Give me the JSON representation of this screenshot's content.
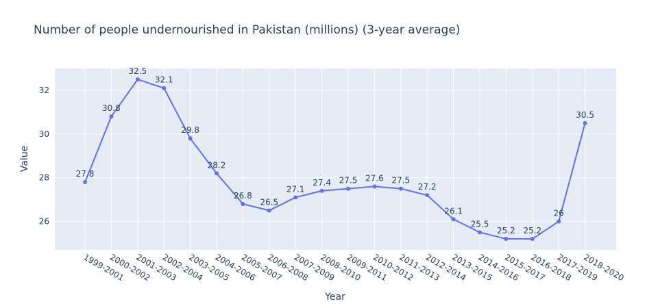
{
  "chart_data": {
    "type": "line",
    "title": "Number of people undernourished in Pakistan (millions) (3-year average)",
    "xlabel": "Year",
    "ylabel": "Value",
    "categories": [
      "1999-2001",
      "2000-2002",
      "2001-2003",
      "2002-2004",
      "2003-2005",
      "2004-2006",
      "2005-2007",
      "2006-2008",
      "2007-2009",
      "2008-2010",
      "2009-2011",
      "2010-2012",
      "2011-2013",
      "2012-2014",
      "2013-2015",
      "2014-2016",
      "2015-2017",
      "2016-2018",
      "2017-2019",
      "2018-2020"
    ],
    "values": [
      27.8,
      30.8,
      32.5,
      32.1,
      29.8,
      28.2,
      26.8,
      26.5,
      27.1,
      27.4,
      27.5,
      27.6,
      27.5,
      27.2,
      26.1,
      25.5,
      25.2,
      25.2,
      26,
      30.5
    ],
    "value_labels": [
      "27.8",
      "30.8",
      "32.5",
      "32.1",
      "29.8",
      "28.2",
      "26.8",
      "26.5",
      "27.1",
      "27.4",
      "27.5",
      "27.6",
      "27.5",
      "27.2",
      "26.1",
      "25.5",
      "25.2",
      "25.2",
      "26",
      "30.5"
    ],
    "ylim": [
      24.7,
      33
    ],
    "yticks": [
      26,
      28,
      30,
      32
    ],
    "ytick_labels": [
      "26",
      "28",
      "30",
      "32"
    ],
    "grid": true,
    "legend": "none",
    "colors": {
      "line": "#636efa",
      "plot_bg": "#e5ecf6",
      "grid": "#ffffff",
      "text": "#2a3f5f"
    }
  }
}
